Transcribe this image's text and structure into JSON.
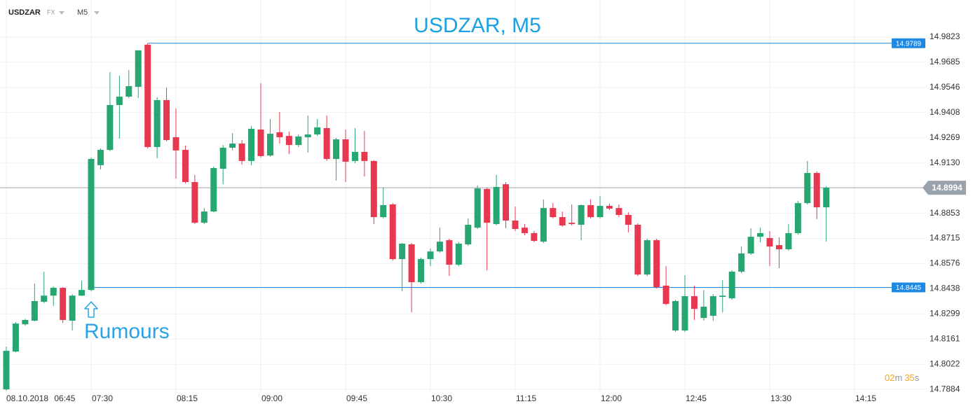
{
  "toolbar": {
    "symbol": "USDZAR",
    "market": "FX",
    "timeframe": "M5"
  },
  "countdown": {
    "minutes": "02",
    "minutes_unit": "m",
    "seconds": "35",
    "seconds_unit": "s"
  },
  "chart_data": {
    "type": "candlestick",
    "title": "USDZAR, M5",
    "date_label": "08.10.2018",
    "up_color": "#26a671",
    "down_color": "#e8384f",
    "x": [
      "06:45",
      "06:50",
      "06:55",
      "07:00",
      "07:05",
      "07:10",
      "07:15",
      "07:20",
      "07:25",
      "07:30",
      "07:35",
      "07:40",
      "07:45",
      "07:50",
      "07:55",
      "08:00",
      "08:05",
      "08:10",
      "08:15",
      "08:20",
      "08:25",
      "08:30",
      "08:35",
      "08:40",
      "08:45",
      "08:50",
      "08:55",
      "09:00",
      "09:05",
      "09:10",
      "09:15",
      "09:20",
      "09:25",
      "09:30",
      "09:35",
      "09:40",
      "09:45",
      "09:50",
      "09:55",
      "10:00",
      "10:05",
      "10:10",
      "10:15",
      "10:20",
      "10:25",
      "10:30",
      "10:35",
      "10:40",
      "10:45",
      "10:50",
      "10:55",
      "11:00",
      "11:05",
      "11:10",
      "11:15",
      "11:20",
      "11:25",
      "11:30",
      "11:35",
      "11:40",
      "11:45",
      "11:50",
      "11:55",
      "12:00",
      "12:05",
      "12:10",
      "12:15",
      "12:20",
      "12:25",
      "12:30",
      "12:35",
      "12:40",
      "12:45",
      "12:50",
      "12:55",
      "13:00",
      "13:05",
      "13:10",
      "13:15",
      "13:20",
      "13:25",
      "13:30",
      "13:35",
      "13:40",
      "13:45",
      "13:50",
      "13:55",
      "14:00"
    ],
    "open": [
      14.7884,
      14.8092,
      14.8242,
      14.8262,
      14.8366,
      14.84,
      14.8443,
      14.8262,
      14.84,
      14.8431,
      14.9118,
      14.9202,
      14.9449,
      14.9495,
      14.9549,
      14.9781,
      14.9218,
      14.9476,
      14.9272,
      14.9202,
      14.9025,
      14.8801,
      14.8863,
      14.9098,
      14.9214,
      14.9237,
      14.9141,
      14.9314,
      14.9171,
      14.9299,
      14.9279,
      14.9229,
      14.9272,
      14.9287,
      14.9322,
      14.9152,
      14.926,
      14.9141,
      14.9191,
      14.9141,
      14.8832,
      14.8902,
      14.8601,
      14.8682,
      14.8474,
      14.8601,
      14.8643,
      14.8705,
      14.857,
      14.8682,
      14.8774,
      14.8987,
      14.8794,
      14.9013,
      14.8813,
      14.8774,
      14.8744,
      14.8697,
      14.8882,
      14.8832,
      14.8801,
      14.879,
      14.8898,
      14.8832,
      14.8894,
      14.8882,
      14.8844,
      14.879,
      14.8516,
      14.8705,
      14.8455,
      14.8208,
      14.8208,
      14.8397,
      14.8277,
      14.8289,
      14.8393,
      14.8385,
      14.8532,
      14.8632,
      14.8724,
      14.8717,
      14.8678,
      14.8655,
      14.8744,
      14.8909,
      14.9075,
      14.8886
    ],
    "high": [
      14.8119,
      14.8254,
      14.8273,
      14.8466,
      14.8532,
      14.8451,
      14.8447,
      14.8408,
      14.8482,
      14.916,
      14.921,
      14.963,
      14.9611,
      14.9642,
      14.975,
      14.9789,
      14.9492,
      14.9545,
      14.943,
      14.9226,
      14.9064,
      14.8882,
      14.911,
      14.9229,
      14.9295,
      14.9256,
      14.9333,
      14.9569,
      14.9372,
      14.941,
      14.9303,
      14.9287,
      14.9391,
      14.9372,
      14.9391,
      14.9268,
      14.9314,
      14.9322,
      14.9306,
      14.9145,
      14.8994,
      14.8909,
      14.869,
      14.869,
      14.8609,
      14.8659,
      14.8774,
      14.8713,
      14.8694,
      14.8825,
      14.9006,
      14.8994,
      14.9064,
      14.9025,
      14.889,
      14.8794,
      14.8755,
      14.8929,
      14.8909,
      14.8863,
      14.8902,
      14.8902,
      14.8929,
      14.8948,
      14.8906,
      14.8902,
      14.8859,
      14.8798,
      14.8713,
      14.8713,
      14.8562,
      14.8377,
      14.8512,
      14.8455,
      14.8431,
      14.8408,
      14.8485,
      14.8539,
      14.867,
      14.8771,
      14.8774,
      14.8755,
      14.8721,
      14.8794,
      14.8921,
      14.9141,
      14.9083,
      14.9002
    ],
    "low": [
      14.7876,
      14.8088,
      14.8235,
      14.8258,
      14.8358,
      14.8343,
      14.825,
      14.8208,
      14.8397,
      14.8424,
      14.9094,
      14.9195,
      14.9264,
      14.9488,
      14.9488,
      14.921,
      14.9156,
      14.9249,
      14.9044,
      14.9017,
      14.8794,
      14.8794,
      14.8859,
      14.9013,
      14.9199,
      14.9121,
      14.9118,
      14.916,
      14.9164,
      14.9237,
      14.9179,
      14.9218,
      14.9187,
      14.9279,
      14.9141,
      14.9033,
      14.9025,
      14.9129,
      14.9056,
      14.8794,
      14.8825,
      14.8593,
      14.8424,
      14.8308,
      14.8466,
      14.8562,
      14.8636,
      14.8508,
      14.8562,
      14.8674,
      14.8767,
      14.8539,
      14.8786,
      14.8771,
      14.8755,
      14.8732,
      14.8694,
      14.869,
      14.8825,
      14.8778,
      14.8786,
      14.8705,
      14.8825,
      14.8825,
      14.8871,
      14.8832,
      14.8748,
      14.8508,
      14.8508,
      14.8439,
      14.8347,
      14.82,
      14.82,
      14.8266,
      14.8262,
      14.8262,
      14.8308,
      14.8377,
      14.8524,
      14.8624,
      14.8694,
      14.8562,
      14.8551,
      14.8647,
      14.8736,
      14.8902,
      14.8821,
      14.8697
    ],
    "close": [
      14.8096,
      14.8246,
      14.8266,
      14.837,
      14.84,
      14.8443,
      14.8266,
      14.84,
      14.8431,
      14.9152,
      14.9202,
      14.9449,
      14.9495,
      14.9553,
      14.975,
      14.9218,
      14.9476,
      14.9256,
      14.9199,
      14.9025,
      14.8801,
      14.8863,
      14.9102,
      14.9214,
      14.9237,
      14.9141,
      14.9318,
      14.9168,
      14.9291,
      14.9272,
      14.9229,
      14.9276,
      14.9287,
      14.9326,
      14.9152,
      14.926,
      14.9137,
      14.9191,
      14.9141,
      14.8832,
      14.8898,
      14.8601,
      14.8686,
      14.8474,
      14.8601,
      14.8643,
      14.8697,
      14.857,
      14.8686,
      14.879,
      14.899,
      14.8801,
      14.8998,
      14.8813,
      14.8767,
      14.8744,
      14.8701,
      14.8882,
      14.8832,
      14.8786,
      14.8794,
      14.8898,
      14.8832,
      14.8894,
      14.8879,
      14.8844,
      14.879,
      14.8516,
      14.8705,
      14.8447,
      14.8354,
      14.837,
      14.8397,
      14.8327,
      14.8339,
      14.8397,
      14.84,
      14.8532,
      14.8632,
      14.8724,
      14.8744,
      14.867,
      14.8655,
      14.8744,
      14.8909,
      14.9075,
      14.8886,
      14.8994
    ],
    "ylim": [
      14.7869,
      15.0027
    ],
    "yticks": [
      14.9823,
      14.9685,
      14.9546,
      14.9408,
      14.9269,
      {
        "value": 14.913,
        "label": "14.9130"
      },
      14.8853,
      14.8715,
      14.8576,
      14.8438,
      14.8299,
      14.8161,
      14.8022,
      14.7884
    ],
    "xticks": [
      "06:45",
      "07:30",
      "08:15",
      "09:00",
      "09:45",
      "10:30",
      "11:15",
      "12:00",
      "12:45",
      "13:30",
      "14:15"
    ],
    "grid": true,
    "levels": [
      {
        "value": 14.9789,
        "start": "08:00",
        "color": "#1e88e5"
      },
      {
        "value": 14.8445,
        "start": "07:30",
        "color": "#1e88e5"
      }
    ],
    "last_price": 14.8994,
    "last_price_color": "#9aa3ab",
    "annotation": {
      "text": "Rumours",
      "x": "07:30",
      "color": "#29a3e6"
    },
    "title_color": "#1ba1e2"
  }
}
